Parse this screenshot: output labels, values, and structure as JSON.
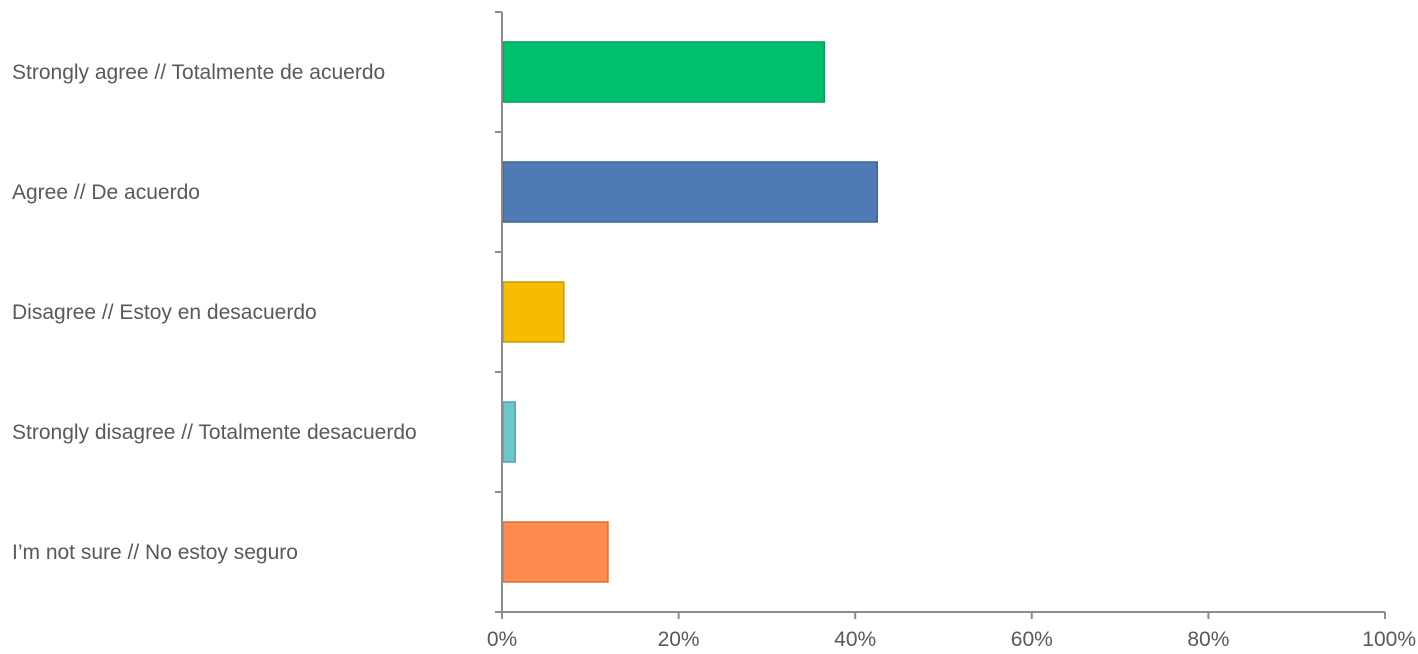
{
  "chart_data": {
    "type": "bar",
    "orientation": "horizontal",
    "title": "",
    "xlabel": "",
    "ylabel": "",
    "categories": [
      "Strongly agree // Totalmente de acuerdo",
      "Agree // De acuerdo",
      "Disagree // Estoy en desacuerdo",
      "Strongly disagree // Totalmente desacuerdo",
      "I’m not sure // No estoy seguro"
    ],
    "values": [
      36.5,
      42.5,
      7,
      1.5,
      12
    ],
    "value_unit": "%",
    "xlim": [
      0,
      100
    ],
    "xticks": [
      0,
      20,
      40,
      60,
      80,
      100
    ],
    "xtick_labels": [
      "0%",
      "20%",
      "40%",
      "60%",
      "80%",
      "100%"
    ],
    "colors": [
      "#00BF6F",
      "#4E7AB5",
      "#F6BD00",
      "#6BC8CD",
      "#FF8B4F"
    ],
    "stroke_colors": [
      "#00a05c",
      "#3f6495",
      "#c99a00",
      "#57a4a8",
      "#d8733f"
    ],
    "grid": false,
    "legend": "none"
  }
}
